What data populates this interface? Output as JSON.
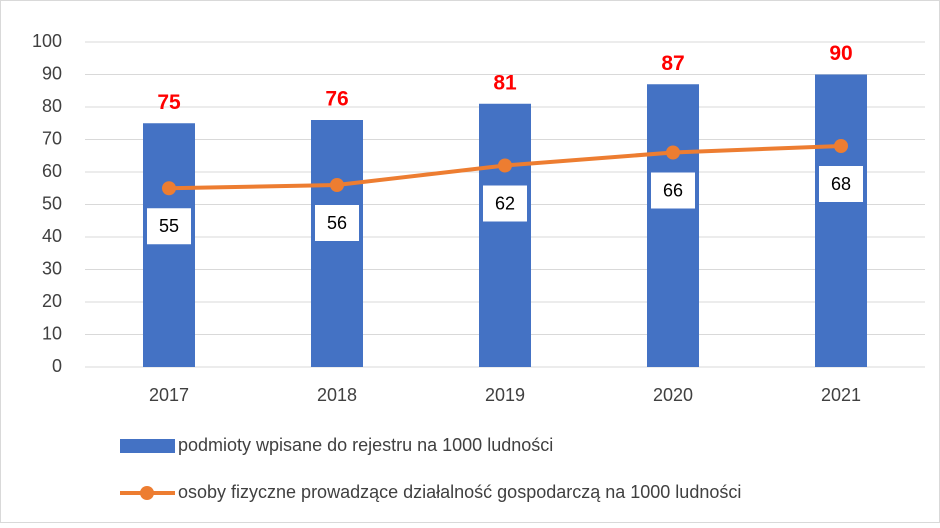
{
  "chart_data": {
    "type": "combo",
    "categories": [
      "2017",
      "2018",
      "2019",
      "2020",
      "2021"
    ],
    "series": [
      {
        "name": "podmioty wpisane do rejestru na 1000 ludności",
        "type": "bar",
        "color": "#4472c4",
        "label_color": "#ff0000",
        "values": [
          75,
          76,
          81,
          87,
          90
        ]
      },
      {
        "name": "osoby fizyczne prowadzące działalność gospodarczą na 1000 ludności",
        "type": "line",
        "color": "#ed7d31",
        "values": [
          55,
          56,
          62,
          66,
          68
        ]
      }
    ],
    "ylim": [
      0,
      100
    ],
    "yticks": [
      0,
      10,
      20,
      30,
      40,
      50,
      60,
      70,
      80,
      90,
      100
    ],
    "grid": true,
    "legend": "bottom"
  }
}
